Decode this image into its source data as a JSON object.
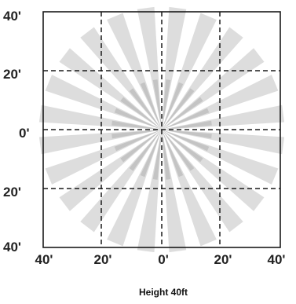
{
  "diagram": {
    "caption": "Height 40ft",
    "y_labels": [
      "40'",
      "20'",
      "0'",
      "20'",
      "40'"
    ],
    "x_labels": [
      "40'",
      "20'",
      "0'",
      "20'",
      "40'"
    ],
    "ray_color": "#dddddd",
    "ray_inner_color": "#c4c4c4",
    "grid_color": "#1a1a1a",
    "frame_color": "#1a1a1a",
    "ray_count": 24
  }
}
